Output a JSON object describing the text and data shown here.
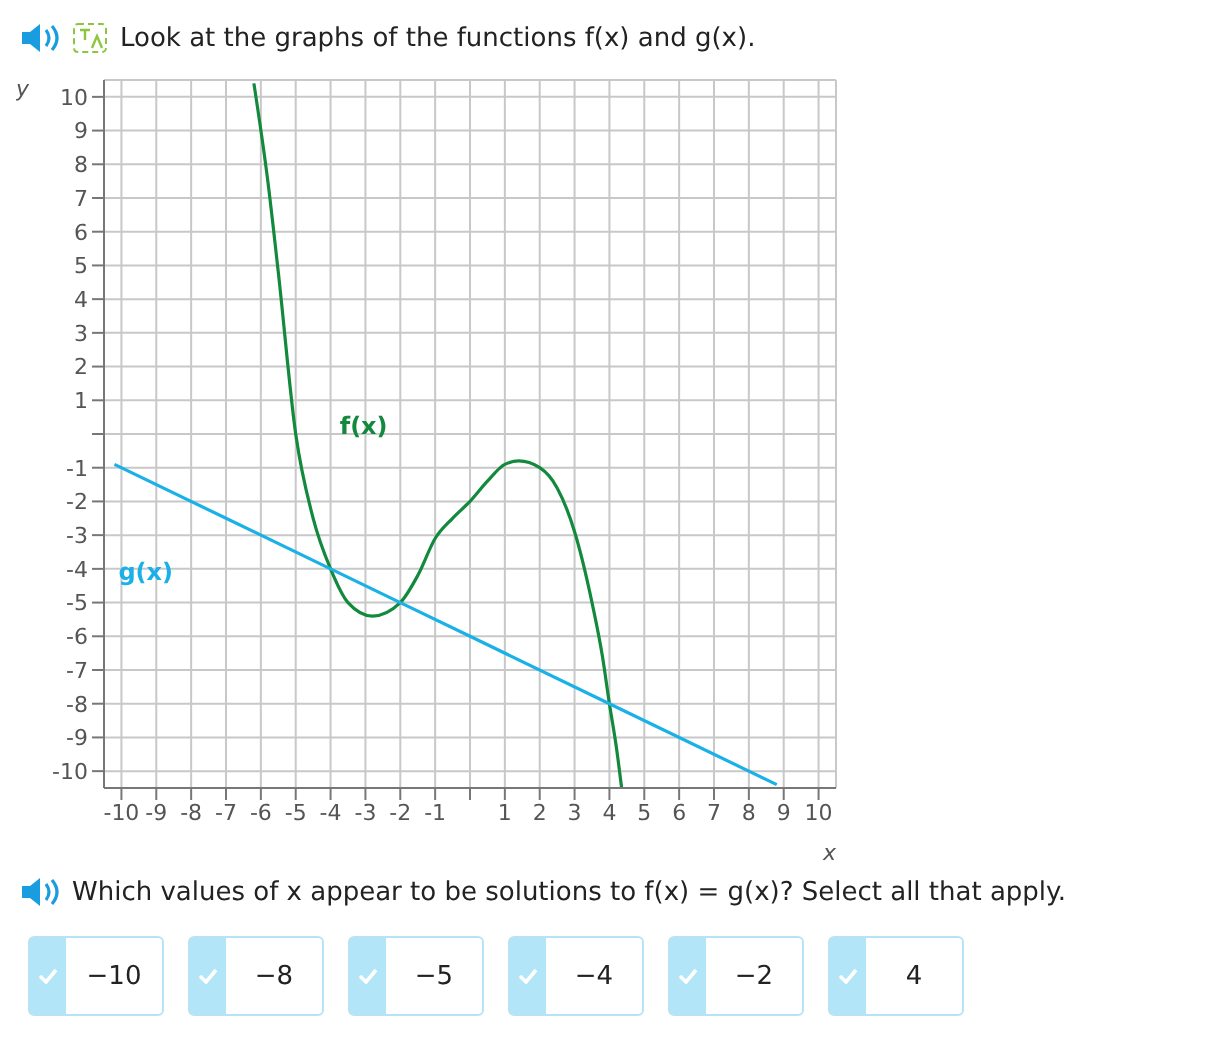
{
  "chart_data": {
    "type": "line",
    "title": "Look at the graphs of the functions f(x) and g(x).",
    "xlabel": "x",
    "ylabel": "y",
    "xlim": [
      -10.5,
      10.5
    ],
    "ylim": [
      -10.5,
      10.5
    ],
    "xticks": [
      -10,
      -9,
      -8,
      -7,
      -6,
      -5,
      -4,
      -3,
      -2,
      -1,
      {
        "value": 0,
        "label": null
      },
      1,
      2,
      3,
      4,
      5,
      6,
      7,
      8,
      9,
      10
    ],
    "yticks": [
      -10,
      -9,
      -8,
      -7,
      -6,
      -5,
      -4,
      -3,
      -2,
      -1,
      {
        "value": 0,
        "label": null
      },
      1,
      2,
      3,
      4,
      5,
      6,
      7,
      8,
      9,
      10
    ],
    "grid": true,
    "legend": false,
    "marker": "none",
    "line_style": "solid",
    "series": [
      {
        "name": "f(x)",
        "color": "#13893d",
        "x": [
          -6.2,
          -5.8,
          -5.5,
          -5,
          -4.5,
          -4,
          -3.5,
          -2.8,
          -2,
          -1.5,
          -1,
          -0.5,
          0,
          0.5,
          1,
          1.4,
          2,
          2.5,
          3,
          3.5,
          3.8,
          4,
          4.2,
          4.35
        ],
        "values": [
          10.4,
          7.5,
          4.8,
          0,
          -2.5,
          -4,
          -5,
          -5.4,
          -5,
          -4.2,
          -3.1,
          -2.5,
          -2,
          -1.4,
          -0.9,
          -0.8,
          -1,
          -1.6,
          -2.9,
          -5,
          -6.6,
          -8,
          -9.3,
          -10.5
        ]
      },
      {
        "name": "g(x)",
        "color": "#1ab0e8",
        "x": [
          -10.2,
          -4,
          -2,
          0,
          4,
          8.8
        ],
        "values": [
          -0.9,
          -4,
          -5,
          -6,
          -8,
          -10.4
        ]
      }
    ],
    "annotations": [
      "Which values of x appear to be solutions to f(x) = g(x)? Select all that apply.",
      "−10",
      "−8",
      "−5",
      "−4",
      "−2",
      "4"
    ]
  }
}
